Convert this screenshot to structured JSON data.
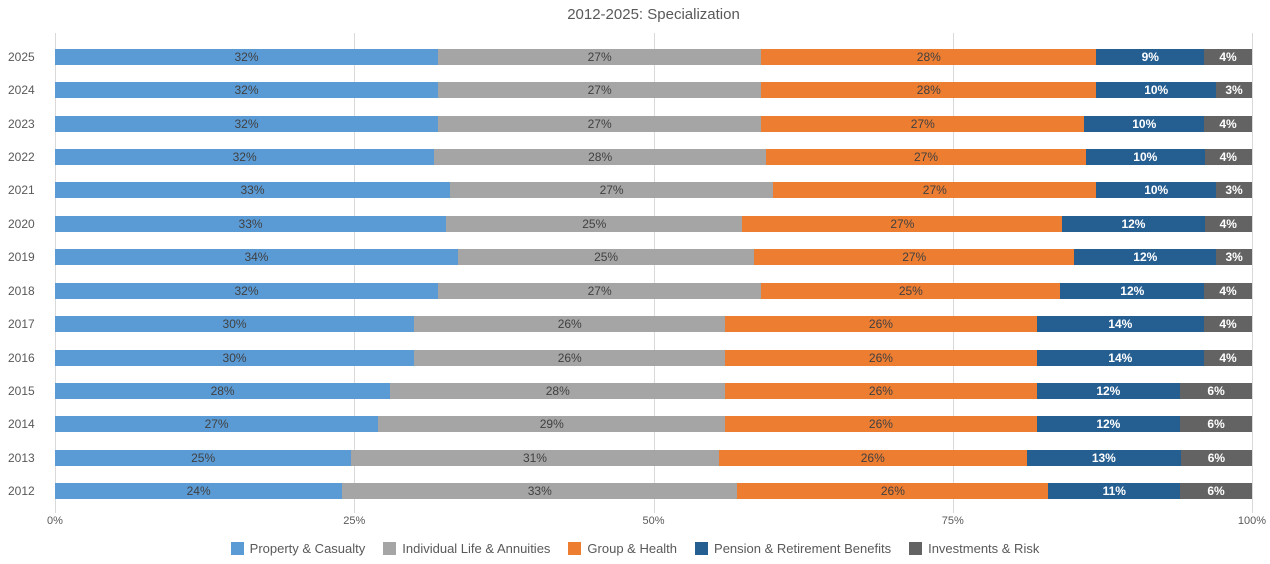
{
  "chart_data": {
    "type": "bar",
    "orientation": "horizontal-stacked",
    "title": "2012-2025: Specialization",
    "categories": [
      "2025",
      "2024",
      "2023",
      "2022",
      "2021",
      "2020",
      "2019",
      "2018",
      "2017",
      "2016",
      "2015",
      "2014",
      "2013",
      "2012"
    ],
    "series": [
      {
        "name": "Property & Casualty",
        "color": "#5B9BD5",
        "label_color": "#404040",
        "values": [
          32,
          32,
          32,
          32,
          33,
          33,
          34,
          32,
          30,
          30,
          28,
          27,
          25,
          24
        ]
      },
      {
        "name": "Individual Life & Annuities",
        "color": "#A5A5A5",
        "label_color": "#404040",
        "values": [
          27,
          27,
          27,
          28,
          27,
          25,
          25,
          27,
          26,
          26,
          28,
          29,
          31,
          33
        ]
      },
      {
        "name": "Group & Health",
        "color": "#ED7D31",
        "label_color": "#404040",
        "values": [
          28,
          28,
          27,
          27,
          27,
          27,
          27,
          25,
          26,
          26,
          26,
          26,
          26,
          26
        ]
      },
      {
        "name": "Pension & Retirement Benefits",
        "color": "#255E91",
        "label_color": "#FFFFFF",
        "values": [
          9,
          10,
          10,
          10,
          10,
          12,
          12,
          12,
          14,
          14,
          12,
          12,
          13,
          11
        ]
      },
      {
        "name": "Investments & Risk",
        "color": "#636363",
        "label_color": "#FFFFFF",
        "values": [
          4,
          3,
          4,
          4,
          3,
          4,
          3,
          4,
          4,
          4,
          6,
          6,
          6,
          6
        ]
      }
    ],
    "value_suffix": "%",
    "x_ticks": [
      "0%",
      "25%",
      "50%",
      "75%",
      "100%"
    ],
    "x_tick_positions": [
      0,
      25,
      50,
      75,
      100
    ],
    "xlim": [
      0,
      100
    ],
    "grid": true,
    "legend_position": "bottom",
    "colors": {
      "gridline": "#d9d9d9",
      "axis_text": "#595959",
      "title_text": "#595959"
    }
  }
}
